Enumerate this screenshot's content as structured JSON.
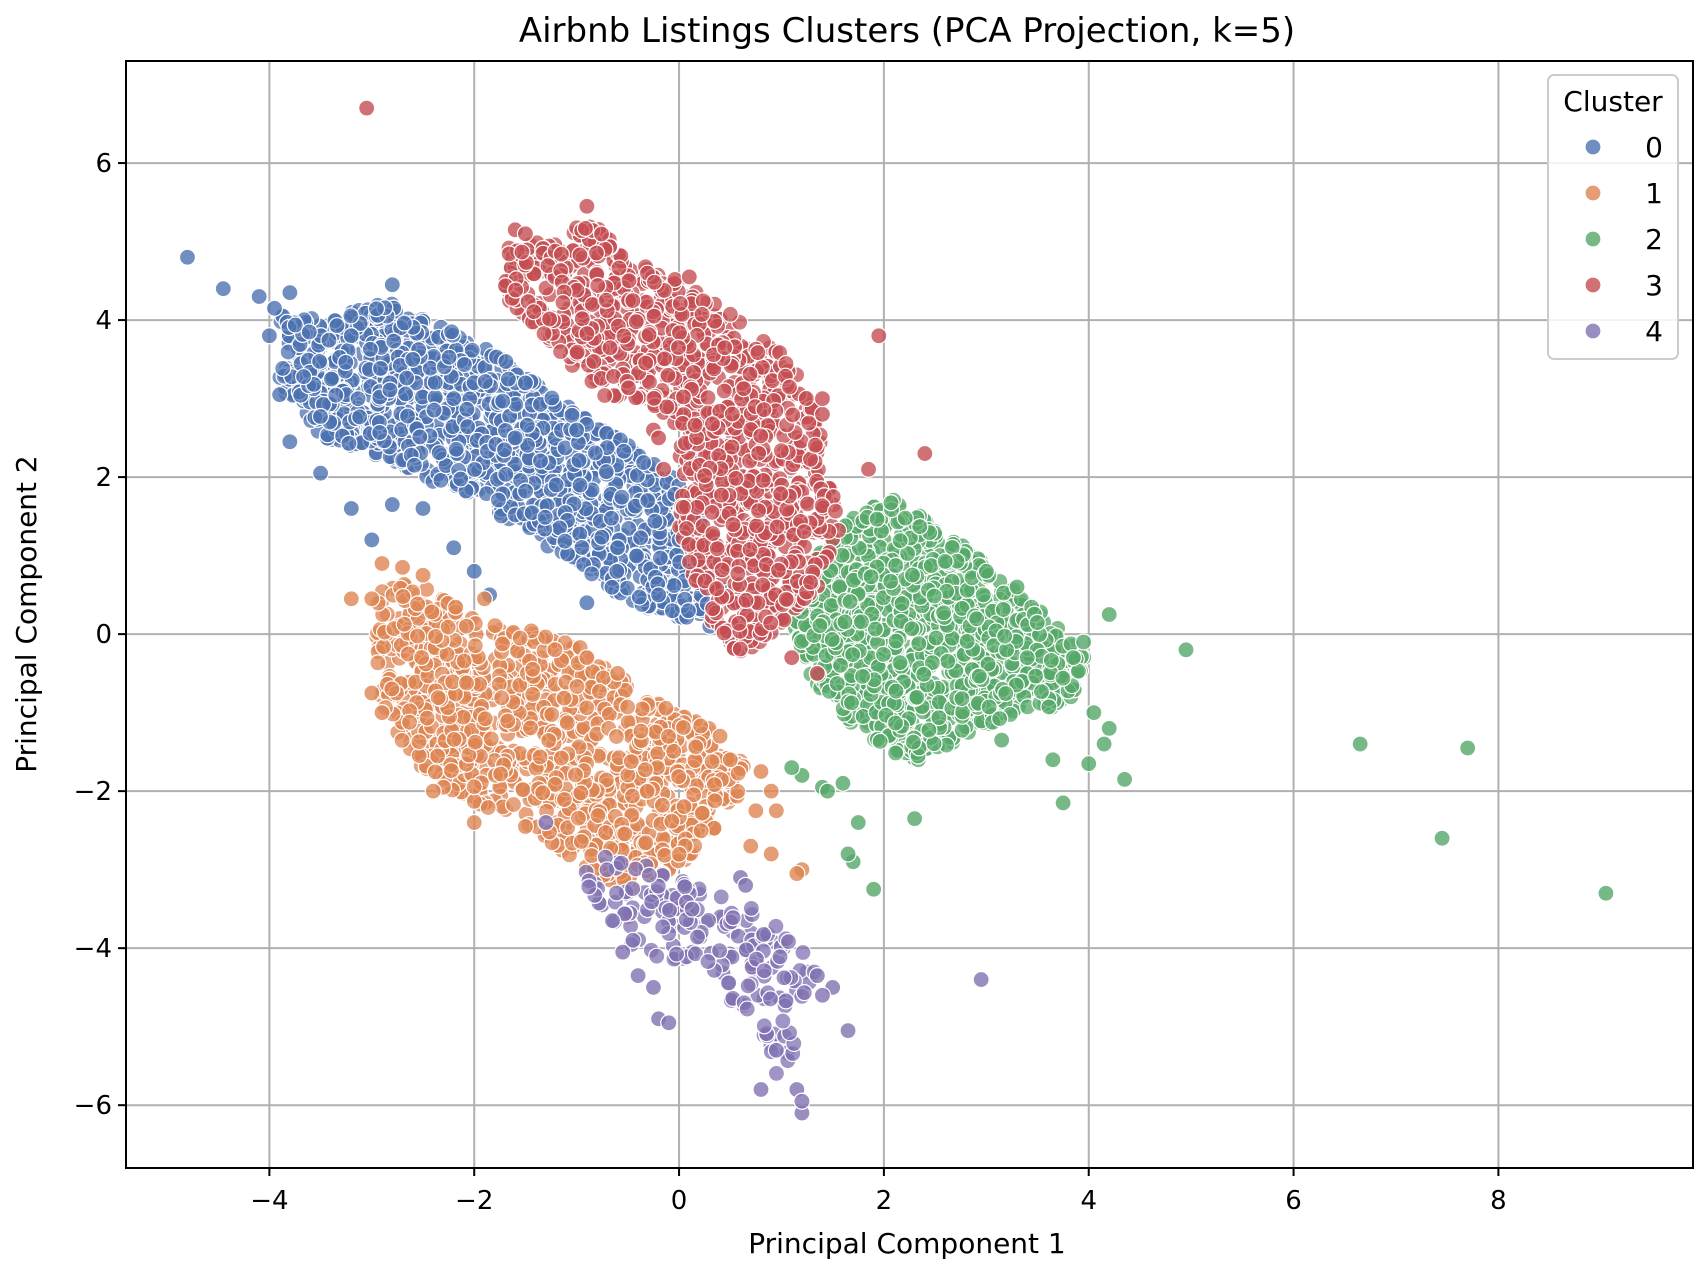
{
  "chart_data": {
    "type": "scatter",
    "title": "Airbnb Listings Clusters (PCA Projection, k=5)",
    "xlabel": "Principal Component 1",
    "ylabel": "Principal Component 2",
    "xlim": [
      -5.4,
      9.9
    ],
    "ylim": [
      -6.8,
      7.3
    ],
    "xticks": [
      -4,
      -2,
      0,
      2,
      4,
      6,
      8
    ],
    "yticks": [
      -6,
      -4,
      -2,
      0,
      2,
      4,
      6
    ],
    "xtick_labels": [
      "−4",
      "−2",
      "0",
      "2",
      "4",
      "6",
      "8"
    ],
    "ytick_labels": [
      "−6",
      "−4",
      "−2",
      "0",
      "2",
      "4",
      "6"
    ],
    "grid": true,
    "legend": {
      "title": "Cluster",
      "position": "top-right",
      "entries": [
        "0",
        "1",
        "2",
        "3",
        "4"
      ]
    },
    "series": [
      {
        "name": "0",
        "color": "#4c72b0",
        "points": [
          [
            -4.8,
            4.8
          ],
          [
            -4.45,
            4.4
          ],
          [
            -4.1,
            4.3
          ],
          [
            -3.95,
            4.15
          ],
          [
            -3.8,
            4.35
          ],
          [
            -4.0,
            3.8
          ],
          [
            -3.9,
            3.05
          ],
          [
            -3.8,
            2.45
          ],
          [
            -3.5,
            2.05
          ],
          [
            -3.2,
            1.6
          ],
          [
            -3.0,
            1.2
          ],
          [
            -2.8,
            1.65
          ],
          [
            -2.5,
            1.6
          ],
          [
            -2.2,
            1.1
          ],
          [
            -2.0,
            0.8
          ],
          [
            -1.85,
            0.5
          ],
          [
            -0.9,
            0.4
          ],
          [
            0.3,
            0.1
          ],
          [
            0.5,
            -0.1
          ],
          [
            -2.8,
            4.45
          ],
          [
            -1.5,
            3.2
          ],
          [
            -1.0,
            2.6
          ],
          [
            0.0,
            1.2
          ],
          [
            -3.2,
            3.8
          ],
          [
            -2.6,
            3.5
          ],
          [
            -2.2,
            3.0
          ],
          [
            -1.6,
            2.5
          ],
          [
            -1.2,
            1.9
          ],
          [
            -0.6,
            1.1
          ],
          [
            -0.2,
            0.5
          ]
        ],
        "body": [
          [
            -3.9,
            4.1
          ],
          [
            -3.4,
            4.0
          ],
          [
            -2.8,
            4.3
          ],
          [
            -2.3,
            3.9
          ],
          [
            -1.8,
            3.6
          ],
          [
            -1.2,
            3.0
          ],
          [
            -0.6,
            2.5
          ],
          [
            -0.05,
            2.0
          ],
          [
            0.35,
            1.2
          ],
          [
            0.45,
            0.4
          ],
          [
            0.2,
            0.15
          ],
          [
            -0.4,
            0.3
          ],
          [
            -0.9,
            0.8
          ],
          [
            -1.5,
            1.3
          ],
          [
            -2.0,
            1.7
          ],
          [
            -2.5,
            2.0
          ],
          [
            -3.0,
            2.3
          ],
          [
            -3.5,
            2.5
          ],
          [
            -3.9,
            3.1
          ]
        ],
        "body_count": 1400
      },
      {
        "name": "1",
        "color": "#dd8452",
        "points": [
          [
            -3.2,
            0.45
          ],
          [
            -3.0,
            0.45
          ],
          [
            -2.9,
            0.9
          ],
          [
            -3.0,
            -0.75
          ],
          [
            -2.9,
            -1.0
          ],
          [
            -2.0,
            -2.4
          ],
          [
            -2.3,
            -1.95
          ],
          [
            -1.5,
            -2.45
          ],
          [
            -0.5,
            -3.6
          ],
          [
            0.7,
            -2.7
          ],
          [
            0.9,
            -2.8
          ],
          [
            1.2,
            -3.0
          ],
          [
            1.15,
            -3.05
          ],
          [
            0.8,
            -1.75
          ],
          [
            0.9,
            -2.0
          ],
          [
            -0.6,
            -0.5
          ],
          [
            -0.9,
            -0.3
          ],
          [
            0.4,
            -1.3
          ],
          [
            0.5,
            -1.6
          ],
          [
            -2.4,
            -2.0
          ],
          [
            -1.9,
            0.45
          ],
          [
            -2.7,
            0.85
          ],
          [
            -2.5,
            0.75
          ],
          [
            0.95,
            -2.25
          ],
          [
            0.75,
            -2.25
          ]
        ],
        "body": [
          [
            -2.9,
            0.7
          ],
          [
            -2.5,
            0.6
          ],
          [
            -2.0,
            0.2
          ],
          [
            -1.4,
            0.05
          ],
          [
            -0.9,
            -0.2
          ],
          [
            -0.3,
            -0.8
          ],
          [
            0.3,
            -1.2
          ],
          [
            0.7,
            -1.75
          ],
          [
            0.5,
            -2.3
          ],
          [
            0.05,
            -2.9
          ],
          [
            -0.5,
            -3.3
          ],
          [
            -1.0,
            -2.9
          ],
          [
            -1.5,
            -2.4
          ],
          [
            -2.1,
            -2.1
          ],
          [
            -2.6,
            -1.6
          ],
          [
            -2.9,
            -0.9
          ],
          [
            -3.0,
            0.0
          ]
        ],
        "body_count": 1100
      },
      {
        "name": "2",
        "color": "#55a868",
        "points": [
          [
            4.95,
            -0.2
          ],
          [
            6.65,
            -1.4
          ],
          [
            7.7,
            -1.45
          ],
          [
            7.45,
            -2.6
          ],
          [
            9.05,
            -3.3
          ],
          [
            4.35,
            -1.85
          ],
          [
            4.2,
            0.25
          ],
          [
            3.75,
            -2.15
          ],
          [
            3.65,
            -1.6
          ],
          [
            2.3,
            -2.35
          ],
          [
            1.9,
            -3.25
          ],
          [
            1.7,
            -2.9
          ],
          [
            1.75,
            -2.4
          ],
          [
            1.6,
            -1.9
          ],
          [
            1.4,
            -1.95
          ],
          [
            1.2,
            -1.8
          ],
          [
            1.1,
            -1.7
          ],
          [
            1.45,
            -2.0
          ],
          [
            3.15,
            -1.35
          ],
          [
            4.0,
            -1.65
          ],
          [
            4.15,
            -1.4
          ],
          [
            3.85,
            -0.3
          ],
          [
            3.3,
            0.6
          ],
          [
            3.0,
            0.8
          ],
          [
            3.95,
            -0.1
          ],
          [
            4.05,
            -1.0
          ],
          [
            4.2,
            -1.2
          ],
          [
            3.4,
            -0.3
          ],
          [
            1.65,
            -2.8
          ]
        ],
        "body": [
          [
            1.25,
            0.9
          ],
          [
            1.7,
            1.5
          ],
          [
            2.1,
            1.75
          ],
          [
            2.5,
            1.4
          ],
          [
            3.0,
            0.9
          ],
          [
            3.6,
            0.2
          ],
          [
            4.0,
            -0.3
          ],
          [
            3.8,
            -0.9
          ],
          [
            3.3,
            -1.0
          ],
          [
            2.8,
            -1.3
          ],
          [
            2.3,
            -1.65
          ],
          [
            1.8,
            -1.3
          ],
          [
            1.3,
            -0.6
          ],
          [
            1.1,
            0.2
          ]
        ],
        "body_count": 1100
      },
      {
        "name": "3",
        "color": "#c44e52",
        "points": [
          [
            -3.05,
            6.7
          ],
          [
            1.95,
            3.8
          ],
          [
            2.4,
            2.3
          ],
          [
            1.85,
            2.1
          ],
          [
            1.4,
            2.8
          ],
          [
            1.4,
            3.0
          ],
          [
            1.35,
            -0.5
          ],
          [
            1.1,
            -0.3
          ],
          [
            -0.9,
            5.45
          ],
          [
            -1.6,
            5.15
          ],
          [
            -1.5,
            5.1
          ],
          [
            -0.25,
            2.6
          ],
          [
            -0.15,
            2.1
          ],
          [
            0.1,
            4.55
          ],
          [
            -0.2,
            2.5
          ]
        ],
        "body": [
          [
            -1.7,
            5.0
          ],
          [
            -1.2,
            5.0
          ],
          [
            -0.9,
            5.3
          ],
          [
            -0.5,
            4.8
          ],
          [
            0.0,
            4.5
          ],
          [
            0.5,
            4.1
          ],
          [
            1.0,
            3.6
          ],
          [
            1.3,
            3.0
          ],
          [
            1.5,
            2.0
          ],
          [
            1.6,
            1.3
          ],
          [
            1.35,
            0.6
          ],
          [
            0.9,
            0.0
          ],
          [
            0.6,
            -0.3
          ],
          [
            0.3,
            0.2
          ],
          [
            0.0,
            1.2
          ],
          [
            0.0,
            2.5
          ],
          [
            -0.3,
            3.0
          ],
          [
            -0.7,
            3.0
          ],
          [
            -1.2,
            3.6
          ],
          [
            -1.7,
            4.3
          ]
        ],
        "body_count": 1200
      },
      {
        "name": "4",
        "color": "#8172b2",
        "points": [
          [
            2.95,
            -4.4
          ],
          [
            1.65,
            -5.05
          ],
          [
            1.2,
            -6.1
          ],
          [
            1.15,
            -5.8
          ],
          [
            1.2,
            -5.95
          ],
          [
            -0.2,
            -4.9
          ],
          [
            -0.1,
            -4.95
          ],
          [
            -0.25,
            -4.5
          ],
          [
            -0.55,
            -4.05
          ],
          [
            -0.4,
            -4.35
          ],
          [
            -0.45,
            -3.9
          ],
          [
            -0.65,
            -3.65
          ],
          [
            1.5,
            -4.5
          ],
          [
            1.4,
            -4.6
          ],
          [
            1.35,
            -4.35
          ],
          [
            -1.3,
            -2.4
          ],
          [
            0.6,
            -3.1
          ],
          [
            0.65,
            -3.2
          ],
          [
            0.8,
            -5.8
          ],
          [
            0.95,
            -5.3
          ]
        ],
        "body": [
          [
            -0.9,
            -2.8
          ],
          [
            -0.4,
            -2.9
          ],
          [
            0.3,
            -3.3
          ],
          [
            0.8,
            -3.5
          ],
          [
            1.2,
            -3.9
          ],
          [
            1.35,
            -4.4
          ],
          [
            1.15,
            -4.8
          ],
          [
            1.15,
            -5.5
          ],
          [
            0.95,
            -5.6
          ],
          [
            0.8,
            -5.0
          ],
          [
            0.45,
            -4.6
          ],
          [
            0.2,
            -4.2
          ],
          [
            -0.3,
            -4.2
          ],
          [
            -0.7,
            -3.6
          ],
          [
            -1.0,
            -3.2
          ]
        ],
        "body_count": 180
      }
    ]
  }
}
